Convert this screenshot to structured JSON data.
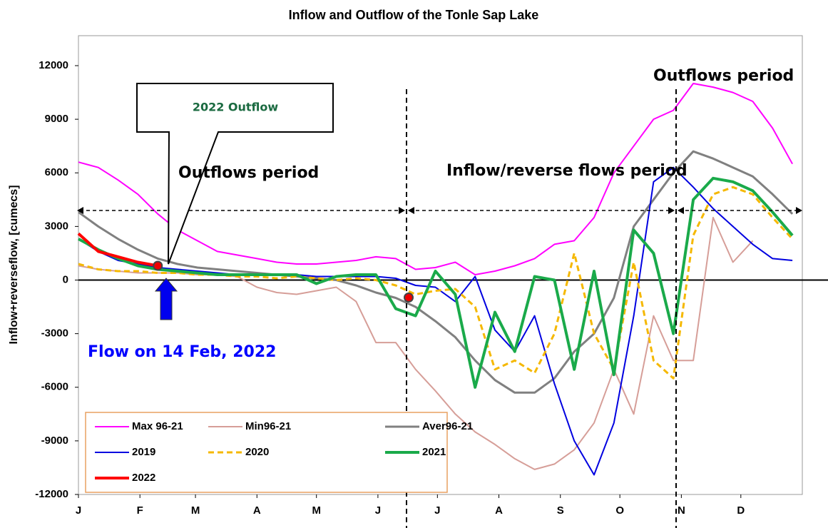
{
  "chart_data": {
    "type": "line",
    "title": "Inflow and Outflow of the Tonle Sap Lake",
    "y_label": "Inflow+reverseflow, [cumecs]",
    "x": [
      1,
      11,
      21,
      31,
      41,
      51,
      61,
      71,
      81,
      91,
      101,
      111,
      121,
      131,
      141,
      151,
      161,
      171,
      181,
      191,
      201,
      211,
      221,
      231,
      241,
      251,
      261,
      271,
      281,
      291,
      301,
      311,
      321,
      331,
      341,
      351,
      361
    ],
    "xlim": [
      1,
      366
    ],
    "xticks": [
      {
        "value": 1,
        "label": "J"
      },
      {
        "value": 32,
        "label": "F"
      },
      {
        "value": 60,
        "label": "M"
      },
      {
        "value": 91,
        "label": "A"
      },
      {
        "value": 121,
        "label": "M"
      },
      {
        "value": 152,
        "label": "J"
      },
      {
        "value": 182,
        "label": "J"
      },
      {
        "value": 213,
        "label": "A"
      },
      {
        "value": 244,
        "label": "S"
      },
      {
        "value": 274,
        "label": "O"
      },
      {
        "value": 305,
        "label": "N"
      },
      {
        "value": 335,
        "label": "D"
      }
    ],
    "ylim": [
      -12000,
      12000
    ],
    "yticks": [
      -12000,
      -9000,
      -6000,
      -3000,
      0,
      3000,
      6000,
      9000,
      12000
    ],
    "series": [
      {
        "name": "Max 96-21",
        "color": "#ff00ff",
        "dashed": false,
        "width": 2,
        "values": [
          6600,
          6300,
          5600,
          4800,
          3700,
          2800,
          2200,
          1600,
          1400,
          1200,
          1000,
          900,
          900,
          1000,
          1100,
          1300,
          1200,
          600,
          700,
          1000,
          300,
          500,
          800,
          1200,
          2000,
          2200,
          3500,
          6000,
          7500,
          9000,
          9500,
          11000,
          10800,
          10500,
          10000,
          8500,
          6500
        ]
      },
      {
        "name": "Min96-21",
        "color": "#d69e98",
        "dashed": false,
        "width": 2,
        "values": [
          800,
          600,
          500,
          400,
          400,
          400,
          300,
          300,
          200,
          -400,
          -700,
          -800,
          -600,
          -400,
          -1200,
          -3500,
          -3500,
          -5000,
          -6200,
          -7500,
          -8500,
          -9200,
          -10000,
          -10600,
          -10300,
          -9500,
          -8000,
          -5000,
          -7500,
          -2000,
          -4500,
          -4500,
          3500,
          1000,
          2200,
          null,
          null
        ]
      },
      {
        "name": "Aver96-21",
        "color": "#808080",
        "dashed": false,
        "width": 3,
        "values": [
          3800,
          3000,
          2300,
          1700,
          1200,
          900,
          700,
          600,
          500,
          400,
          300,
          200,
          100,
          0,
          -300,
          -700,
          -1000,
          -1500,
          -2300,
          -3200,
          -4500,
          -5600,
          -6300,
          -6300,
          -5500,
          -4000,
          -3000,
          -1000,
          3000,
          4500,
          6000,
          7200,
          6800,
          6300,
          5800,
          4800,
          3700
        ]
      },
      {
        "name": "2019",
        "color": "#0000e0",
        "dashed": false,
        "width": 2,
        "values": [
          2300,
          1600,
          1100,
          900,
          700,
          600,
          500,
          400,
          300,
          300,
          300,
          300,
          200,
          200,
          200,
          200,
          100,
          -300,
          -400,
          -1200,
          200,
          -2800,
          -4000,
          -2000,
          -5800,
          -9000,
          -10900,
          -8000,
          -2000,
          5500,
          6300,
          5200,
          4000,
          3000,
          2000,
          1200,
          1100
        ]
      },
      {
        "name": "2020",
        "color": "#f5b800",
        "dashed": true,
        "width": 3,
        "values": [
          900,
          600,
          500,
          500,
          400,
          400,
          300,
          300,
          200,
          200,
          100,
          200,
          100,
          0,
          100,
          0,
          -300,
          -800,
          -600,
          -500,
          -1500,
          -5000,
          -4500,
          -5200,
          -3000,
          1500,
          -3000,
          -5000,
          1000,
          -4500,
          -5500,
          2500,
          4800,
          5200,
          4800,
          3500,
          2300
        ]
      },
      {
        "name": "2021",
        "color": "#1aaa4a",
        "dashed": false,
        "width": 4,
        "values": [
          2300,
          1700,
          1200,
          800,
          600,
          500,
          400,
          300,
          300,
          300,
          300,
          300,
          -200,
          200,
          300,
          300,
          -1600,
          -2000,
          500,
          -800,
          -6000,
          -1800,
          -4000,
          200,
          0,
          -5000,
          500,
          -5300,
          2800,
          1500,
          -3000,
          4500,
          5700,
          5500,
          5000,
          3800,
          2500
        ]
      },
      {
        "name": "2022",
        "color": "#ff0000",
        "dashed": false,
        "width": 4,
        "values": [
          2600,
          1600,
          1300,
          1000,
          800,
          null,
          null,
          null,
          null,
          null,
          null,
          null,
          null,
          null,
          null,
          null,
          null,
          null,
          null,
          null,
          null,
          null,
          null,
          null,
          null,
          null,
          null,
          null,
          null,
          null,
          null,
          null,
          null,
          null,
          null,
          null,
          null
        ]
      }
    ],
    "annotations": [
      "2022 Outflow",
      "Outflows period",
      "Inflow/reverse flows period",
      "Outflows period",
      "Flow on 14 Feb, 2022"
    ]
  }
}
